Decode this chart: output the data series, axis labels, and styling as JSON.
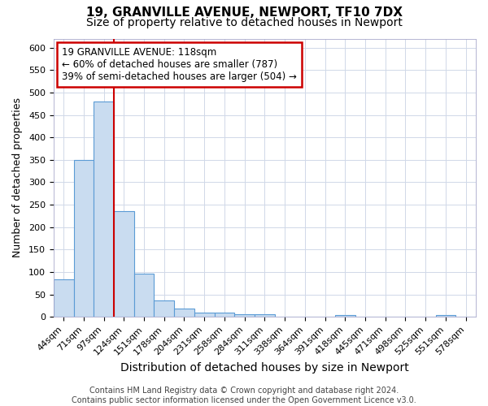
{
  "title1": "19, GRANVILLE AVENUE, NEWPORT, TF10 7DX",
  "title2": "Size of property relative to detached houses in Newport",
  "xlabel": "Distribution of detached houses by size in Newport",
  "ylabel": "Number of detached properties",
  "categories": [
    "44sqm",
    "71sqm",
    "97sqm",
    "124sqm",
    "151sqm",
    "178sqm",
    "204sqm",
    "231sqm",
    "258sqm",
    "284sqm",
    "311sqm",
    "338sqm",
    "364sqm",
    "391sqm",
    "418sqm",
    "445sqm",
    "471sqm",
    "498sqm",
    "525sqm",
    "551sqm",
    "578sqm"
  ],
  "values": [
    83,
    350,
    480,
    235,
    97,
    37,
    19,
    9,
    9,
    6,
    6,
    0,
    0,
    0,
    5,
    0,
    0,
    0,
    0,
    5,
    0
  ],
  "bar_color": "#c9dcf0",
  "bar_edge_color": "#5b9bd5",
  "vline_color": "#cc0000",
  "annotation_text": "19 GRANVILLE AVENUE: 118sqm\n← 60% of detached houses are smaller (787)\n39% of semi-detached houses are larger (504) →",
  "annotation_box_color": "white",
  "annotation_box_edge_color": "#cc0000",
  "footer_text": "Contains HM Land Registry data © Crown copyright and database right 2024.\nContains public sector information licensed under the Open Government Licence v3.0.",
  "ylim": [
    0,
    620
  ],
  "yticks": [
    0,
    50,
    100,
    150,
    200,
    250,
    300,
    350,
    400,
    450,
    500,
    550,
    600
  ],
  "bg_color": "#ffffff",
  "plot_bg_color": "#ffffff",
  "title1_fontsize": 11,
  "title2_fontsize": 10,
  "xlabel_fontsize": 10,
  "ylabel_fontsize": 9,
  "tick_fontsize": 8,
  "footer_fontsize": 7
}
